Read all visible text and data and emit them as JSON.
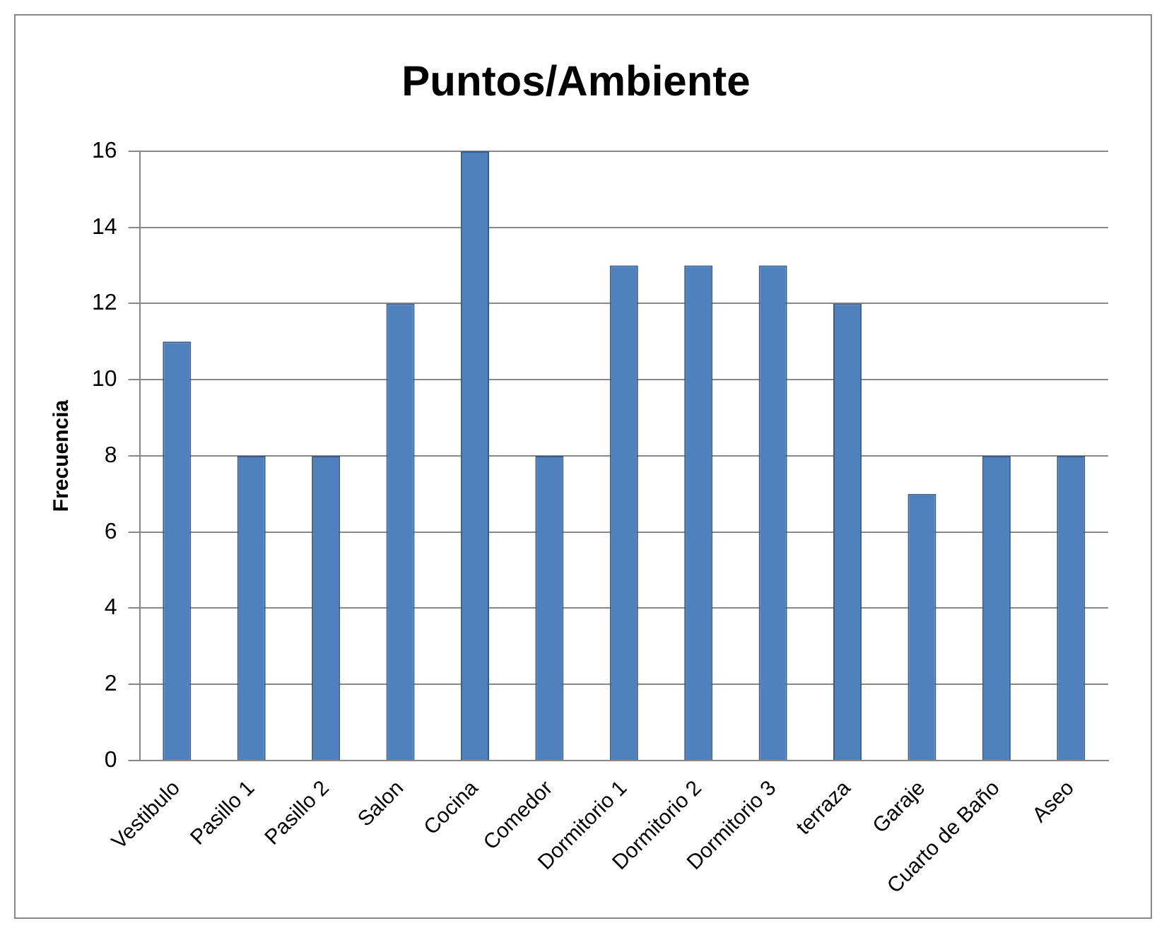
{
  "chart_data": {
    "type": "bar",
    "title": "Puntos/Ambiente",
    "ylabel": "Frecuencia",
    "categories": [
      "Vestibulo",
      "Pasillo 1",
      "Pasillo 2",
      "Salon",
      "Cocina",
      "Comedor",
      "Dormitorio 1",
      "Dormitorio 2",
      "Dormitorio 3",
      "terraza",
      "Garaje",
      "Cuarto de Baño",
      "Aseo"
    ],
    "values": [
      11,
      8,
      8,
      12,
      16,
      8,
      13,
      13,
      13,
      12,
      7,
      8,
      8
    ],
    "color": "#4f81bd",
    "ylim": [
      0,
      16
    ],
    "yticks": [
      0,
      2,
      4,
      6,
      8,
      10,
      12,
      14,
      16
    ],
    "grid": "y"
  }
}
